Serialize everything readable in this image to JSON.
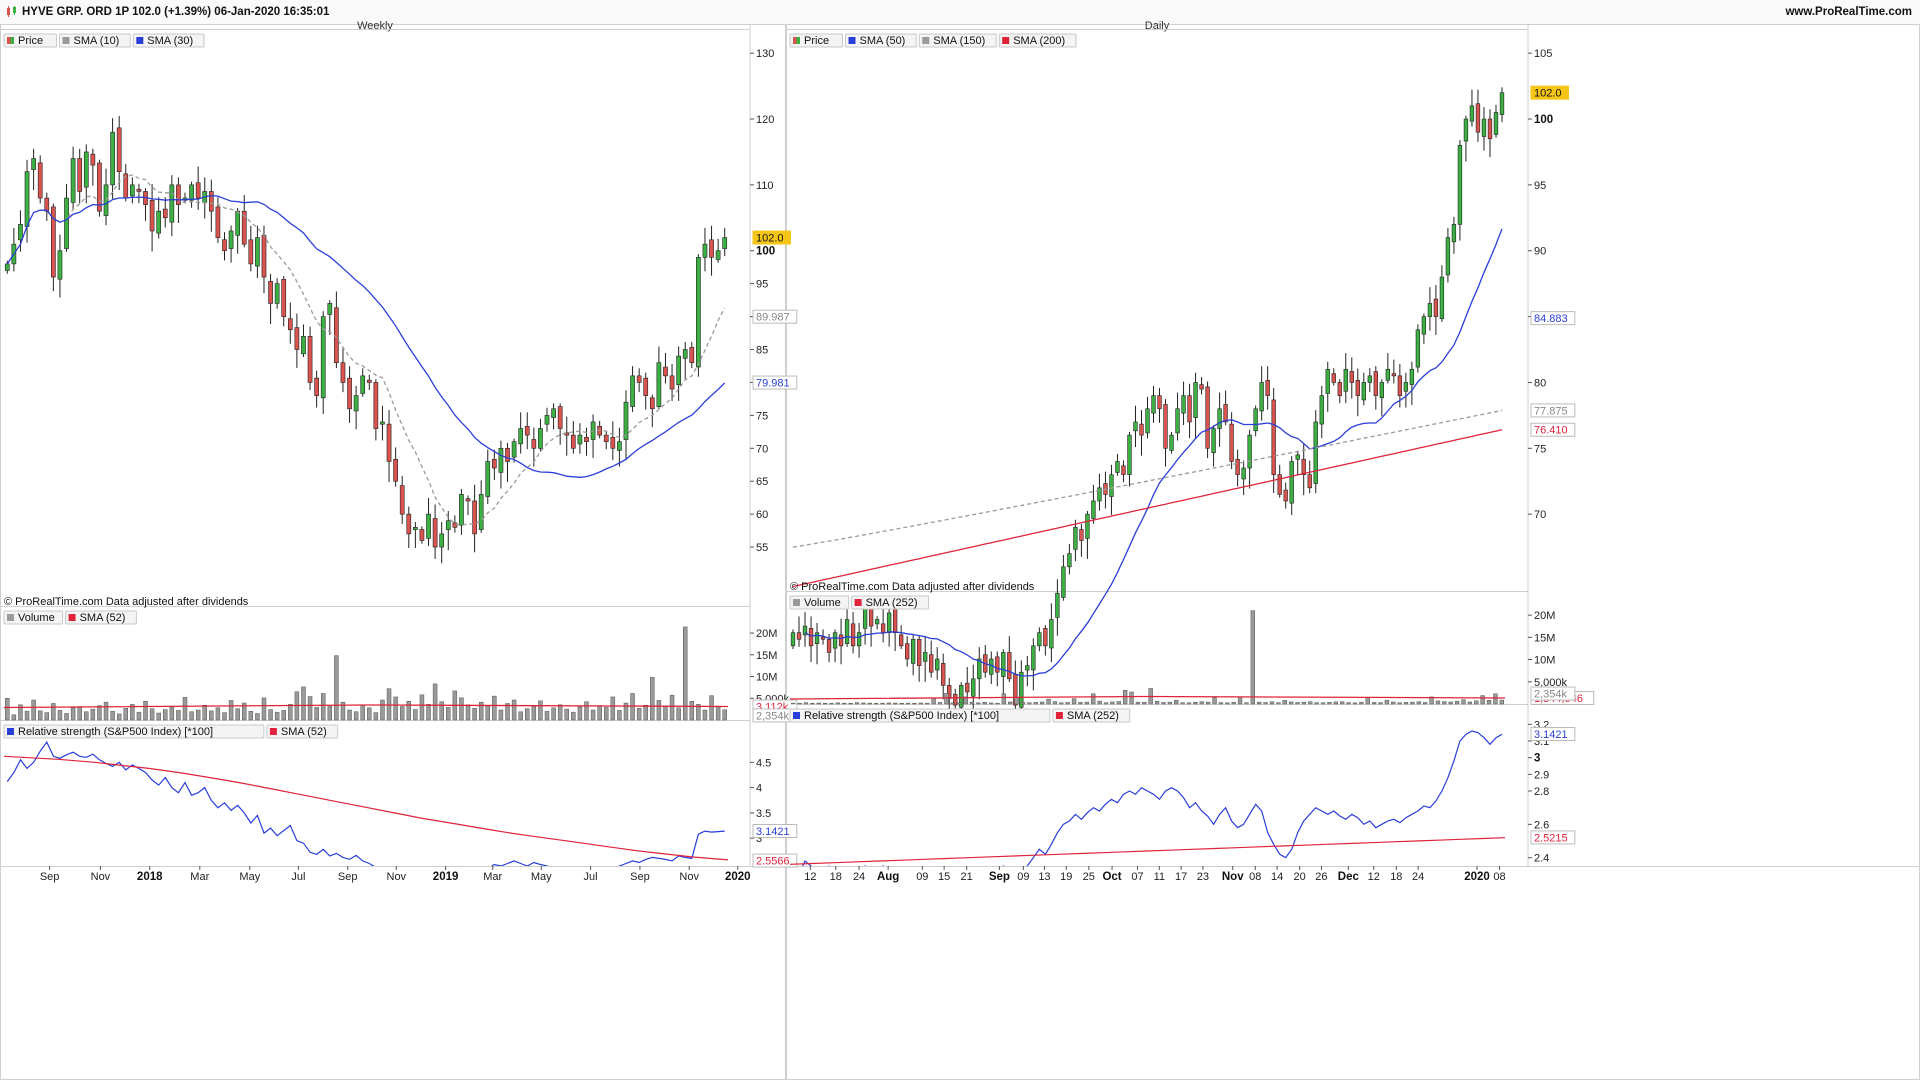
{
  "header": {
    "left_text": "HYVE GRP. ORD 1P 102.0 (+1.39%) 06-Jan-2020 16:35:01",
    "right_text": "www.ProRealTime.com"
  },
  "colors": {
    "up": "#3cb043",
    "down": "#d9534f",
    "sma_short": "#9a9a9a",
    "sma_blue": "#2a3ed8",
    "sma_red": "#e0233b",
    "rs_line": "#2a3ed8",
    "volume_bar": "#9a9a9a",
    "highlight": "#f5c518"
  },
  "chart_data": [
    {
      "id": "weekly-price",
      "type": "candlestick",
      "title": "Weekly",
      "legend": [
        "Price",
        "SMA (10)",
        "SMA (30)"
      ],
      "credit": "© ProRealTime.com  Data adjusted after dividends",
      "ylim": [
        50,
        132
      ],
      "y_ticks": [
        "130",
        "120",
        "110",
        "100",
        "95",
        "90",
        "85",
        "80",
        "75",
        "70",
        "65",
        "60",
        "55"
      ],
      "y_tick_values": [
        130,
        120,
        110,
        100,
        95,
        90,
        85,
        80,
        75,
        70,
        65,
        60,
        55
      ],
      "bold_tick": "100",
      "last_price_label": "102.0",
      "last_price": 102.0,
      "sma10_label": "89.987",
      "sma10_last": 89.987,
      "sma30_label": "79.981",
      "sma30_last": 79.981,
      "x_labels": [
        "Sep",
        "Nov",
        "2018",
        "Mar",
        "May",
        "Jul",
        "Sep",
        "Nov",
        "2019",
        "Mar",
        "May",
        "Jul",
        "Sep",
        "Nov",
        "2020"
      ],
      "bold_x_labels": [
        "2018",
        "2019",
        "2020"
      ],
      "x_label_positions": [
        0.062,
        0.131,
        0.198,
        0.266,
        0.334,
        0.4,
        0.467,
        0.533,
        0.6,
        0.664,
        0.73,
        0.797,
        0.864,
        0.931,
        0.997
      ],
      "close_series": [
        98,
        101,
        104,
        112,
        114,
        108,
        106,
        96,
        100,
        108,
        114,
        109,
        115,
        113,
        106,
        110,
        118,
        112,
        108,
        110,
        109,
        107,
        103,
        106,
        105,
        110,
        107,
        108,
        110,
        108,
        109,
        106,
        102,
        100,
        103,
        106,
        101,
        98,
        102,
        96,
        92,
        95,
        90,
        88,
        85,
        87,
        80,
        78,
        90,
        92,
        83,
        80,
        76,
        78,
        81,
        80,
        73,
        74,
        68,
        65,
        60,
        57,
        58,
        56,
        60,
        55,
        57,
        59,
        58,
        63,
        62,
        57,
        63,
        68,
        67,
        70,
        68,
        71,
        73,
        72,
        70,
        73,
        75,
        76,
        73,
        72,
        70,
        72,
        71,
        74,
        72,
        71,
        70,
        71,
        77,
        81,
        80,
        78,
        76,
        83,
        81,
        79,
        84,
        85,
        83,
        99,
        101,
        99,
        100,
        102
      ]
    },
    {
      "id": "weekly-volume",
      "type": "bar",
      "legend": [
        "Volume",
        "SMA (52)"
      ],
      "ylim": [
        0,
        23000000
      ],
      "y_ticks": [
        "20M",
        "15M",
        "10M",
        "5,000k"
      ],
      "y_tick_values": [
        20000000,
        15000000,
        10000000,
        5000000
      ],
      "sma_label": "3,112k",
      "sma_value": 3112000,
      "last_label": "2,354k",
      "last_value": 2354000,
      "values_k": [
        5000,
        1200,
        3500,
        2000,
        4600,
        2100,
        1700,
        3800,
        2200,
        1500,
        2800,
        3100,
        1900,
        2500,
        3300,
        4100,
        2000,
        1400,
        2700,
        3600,
        1800,
        4300,
        2600,
        1600,
        2400,
        3000,
        2200,
        5200,
        1900,
        2300,
        3400,
        2100,
        2800,
        1700,
        4500,
        2600,
        3900,
        2000,
        1500,
        5100,
        2400,
        1800,
        2200,
        3600,
        6500,
        7600,
        5400,
        2900,
        6100,
        3200,
        14800,
        4100,
        2300,
        1900,
        3400,
        2800,
        1700,
        4600,
        7200,
        5300,
        3100,
        4300,
        2400,
        5800,
        3600,
        8300,
        4200,
        2900,
        6700,
        5100,
        3500,
        2700,
        4100,
        3300,
        5500,
        2300,
        3800,
        4600,
        1900,
        2600,
        3200,
        4400,
        2000,
        2800,
        3500,
        2500,
        1800,
        3000,
        4200,
        2300,
        3300,
        2900,
        5300,
        2200,
        3900,
        6100,
        2700,
        3400,
        9800,
        4500,
        3100,
        5700,
        2800,
        21400,
        4300,
        3600,
        2300,
        5600,
        3200,
        2354
      ]
    },
    {
      "id": "weekly-rs",
      "type": "line",
      "legend": [
        "Relative strength (S&P500 Index) [*100]",
        "SMA (52)"
      ],
      "ylim": [
        2.45,
        5.1
      ],
      "y_ticks": [
        "4.5",
        "4",
        "3.5",
        "3"
      ],
      "y_tick_values": [
        4.5,
        4,
        3.5,
        3
      ],
      "rs_label": "3.1421",
      "rs_last": 3.1421,
      "sma_label": "2.5566",
      "sma_last": 2.5566,
      "rs_values": [
        4.12,
        4.3,
        4.55,
        4.38,
        4.5,
        4.72,
        4.9,
        4.62,
        4.58,
        4.65,
        4.7,
        4.62,
        4.6,
        4.66,
        4.55,
        4.48,
        4.42,
        4.5,
        4.35,
        4.45,
        4.38,
        4.3,
        4.15,
        4.05,
        4.2,
        4.0,
        3.9,
        4.1,
        3.85,
        3.9,
        4.0,
        3.75,
        3.6,
        3.7,
        3.55,
        3.65,
        3.5,
        3.3,
        3.45,
        3.1,
        3.2,
        3.05,
        3.15,
        3.25,
        2.95,
        2.9,
        2.72,
        2.68,
        2.78,
        2.65,
        2.7,
        2.62,
        2.58,
        2.66,
        2.55,
        2.5,
        2.42,
        2.35,
        2.4,
        2.3,
        2.25,
        2.3,
        2.18,
        2.22,
        2.25,
        2.2,
        2.3,
        2.28,
        2.25,
        2.35,
        2.3,
        2.28,
        2.32,
        2.4,
        2.48,
        2.45,
        2.5,
        2.55,
        2.5,
        2.45,
        2.52,
        2.48,
        2.45,
        2.38,
        2.4,
        2.35,
        2.38,
        2.32,
        2.3,
        2.35,
        2.38,
        2.42,
        2.4,
        2.45,
        2.5,
        2.55,
        2.52,
        2.58,
        2.62,
        2.6,
        2.58,
        2.55,
        2.65,
        2.62,
        2.6,
        3.08,
        3.14,
        3.12,
        3.13,
        3.14
      ],
      "sma_values": [
        4.62,
        4.6,
        4.58,
        4.56,
        4.53,
        4.5,
        4.46,
        4.42,
        4.38,
        4.33,
        4.28,
        4.22,
        4.16,
        4.1,
        4.03,
        3.96,
        3.89,
        3.82,
        3.75,
        3.68,
        3.61,
        3.54,
        3.47,
        3.4,
        3.34,
        3.28,
        3.22,
        3.16,
        3.1,
        3.05,
        3.0,
        2.95,
        2.9,
        2.85,
        2.8,
        2.75,
        2.71,
        2.67,
        2.63,
        2.6,
        2.57
      ]
    },
    {
      "id": "daily-price",
      "type": "candlestick",
      "title": "Daily",
      "legend": [
        "Price",
        "SMA (50)",
        "SMA (150)",
        "SMA (200)"
      ],
      "credit": "© ProRealTime.com  Data adjusted after dividends",
      "ylim": [
        65,
        106
      ],
      "y_ticks": [
        "105",
        "100",
        "95",
        "90",
        "85",
        "80",
        "75",
        "70"
      ],
      "y_tick_values": [
        105,
        100,
        95,
        90,
        85,
        80,
        75,
        70
      ],
      "bold_tick": "100",
      "last_price_label": "102.0",
      "last_price": 102.0,
      "sma50_label": "84.883",
      "sma50_last": 84.883,
      "sma150_label": "77.875",
      "sma150_last": 77.875,
      "sma200_label": "76.410",
      "sma200_last": 76.41,
      "x_labels": [
        "12",
        "18",
        "24",
        "Aug",
        "09",
        "15",
        "21",
        "Sep",
        "09",
        "13",
        "19",
        "25",
        "Oct",
        "07",
        "11",
        "17",
        "23",
        "Nov",
        "08",
        "14",
        "20",
        "26",
        "Dec",
        "12",
        "18",
        "24",
        "2020",
        "08"
      ],
      "bold_x_labels": [
        "Aug",
        "Sep",
        "Oct",
        "Nov",
        "Dec",
        "2020"
      ],
      "x_label_positions": [
        0.028,
        0.063,
        0.095,
        0.135,
        0.182,
        0.212,
        0.243,
        0.288,
        0.321,
        0.35,
        0.38,
        0.411,
        0.443,
        0.478,
        0.508,
        0.538,
        0.568,
        0.609,
        0.64,
        0.67,
        0.701,
        0.731,
        0.768,
        0.803,
        0.834,
        0.864,
        0.945,
        0.976
      ],
      "close_series": [
        61,
        60.5,
        61.5,
        60,
        61,
        60.5,
        59.5,
        61,
        60,
        62,
        60,
        61,
        63,
        61.5,
        62,
        61,
        62.5,
        61,
        60,
        59,
        60.5,
        58.5,
        59.5,
        58,
        59,
        57,
        56,
        55.5,
        57,
        56.5,
        57.5,
        59,
        58,
        59,
        58,
        59.5,
        57.5,
        55.5,
        58,
        58.5,
        60,
        61,
        60,
        62,
        64,
        66,
        67,
        69,
        68,
        70,
        71,
        72,
        71.5,
        73,
        74,
        73,
        76,
        77,
        76,
        78,
        79,
        78,
        75,
        76,
        78,
        79,
        77,
        80,
        79.5,
        75,
        76.5,
        78,
        77,
        74,
        73,
        73.5,
        76,
        78,
        80,
        79,
        73,
        71.5,
        71,
        74,
        74.5,
        73,
        72,
        77,
        79,
        81,
        80,
        79,
        81,
        80,
        79,
        80,
        80.5,
        79,
        80,
        81,
        80.5,
        79,
        80,
        81,
        84,
        85,
        86,
        85,
        88,
        91,
        92,
        98,
        100,
        101,
        99,
        100,
        98.5,
        100.5,
        102
      ]
    },
    {
      "id": "daily-volume",
      "type": "bar",
      "legend": [
        "Volume",
        "SMA (252)"
      ],
      "ylim": [
        0,
        22500000
      ],
      "y_ticks": [
        "20M",
        "15M",
        "10M",
        "5,000k"
      ],
      "y_tick_values": [
        20000000,
        15000000,
        10000000,
        5000000
      ],
      "sma_label": "2,354k",
      "sma_value": 2354000,
      "overlap_label": "1,344,946",
      "values_k": [
        200,
        150,
        300,
        180,
        220,
        160,
        140,
        260,
        190,
        170,
        310,
        230,
        200,
        150,
        180,
        240,
        210,
        170,
        190,
        160,
        220,
        180,
        1300,
        350,
        2400,
        250,
        300,
        1600,
        420,
        270,
        380,
        240,
        190,
        2300,
        460,
        1400,
        330,
        290,
        360,
        450,
        1100,
        520,
        280,
        340,
        1200,
        380,
        430,
        2300,
        650,
        300,
        470,
        560,
        3100,
        2700,
        410,
        380,
        3500,
        620,
        360,
        420,
        850,
        310,
        270,
        390,
        520,
        440,
        1400,
        320,
        260,
        380,
        1600,
        300,
        21000,
        420,
        340,
        510,
        290,
        830,
        470,
        350,
        420,
        530,
        310,
        280,
        390,
        460,
        520,
        330,
        250,
        410,
        1400,
        360,
        310,
        850,
        440,
        290,
        380,
        420,
        520,
        340,
        1600,
        700,
        540,
        450,
        630,
        980,
        460,
        720,
        1900,
        840,
        2300,
        880
      ]
    },
    {
      "id": "daily-rs",
      "type": "line",
      "legend": [
        "Relative strength (S&P500 Index) [*100]",
        "SMA (252)"
      ],
      "ylim": [
        2.35,
        3.25
      ],
      "y_ticks": [
        "3.2",
        "3.1",
        "3",
        "2.9",
        "2.8",
        "2.6",
        "2.4"
      ],
      "y_tick_values": [
        3.2,
        3.1,
        3,
        2.9,
        2.8,
        2.6,
        2.4
      ],
      "bold_tick": "3",
      "rs_label": "3.1421",
      "rs_last": 3.1421,
      "sma_label": "2.5215",
      "sma_last": 2.5215,
      "rs_values": [
        2.33,
        2.3,
        2.38,
        2.35,
        2.32,
        2.28,
        2.35,
        2.3,
        2.25,
        2.32,
        2.3,
        2.27,
        2.35,
        2.3,
        2.28,
        2.35,
        2.32,
        2.3,
        2.27,
        2.33,
        2.3,
        2.25,
        2.32,
        2.28,
        2.24,
        2.3,
        2.27,
        2.24,
        2.3,
        2.26,
        2.3,
        2.34,
        2.3,
        2.32,
        2.3,
        2.35,
        2.3,
        2.26,
        2.32,
        2.35,
        2.4,
        2.45,
        2.42,
        2.48,
        2.55,
        2.6,
        2.62,
        2.66,
        2.63,
        2.67,
        2.7,
        2.68,
        2.72,
        2.75,
        2.73,
        2.78,
        2.8,
        2.78,
        2.82,
        2.8,
        2.78,
        2.75,
        2.8,
        2.82,
        2.8,
        2.76,
        2.7,
        2.73,
        2.68,
        2.65,
        2.6,
        2.66,
        2.7,
        2.62,
        2.58,
        2.6,
        2.66,
        2.72,
        2.68,
        2.55,
        2.48,
        2.42,
        2.4,
        2.45,
        2.55,
        2.62,
        2.66,
        2.7,
        2.68,
        2.66,
        2.68,
        2.65,
        2.63,
        2.66,
        2.64,
        2.6,
        2.62,
        2.58,
        2.6,
        2.62,
        2.63,
        2.61,
        2.64,
        2.66,
        2.68,
        2.71,
        2.7,
        2.74,
        2.8,
        2.88,
        2.98,
        3.1,
        3.14,
        3.16,
        3.15,
        3.12,
        3.08,
        3.12,
        3.14
      ],
      "sma_values": [
        2.36,
        2.365,
        2.37,
        2.375,
        2.38,
        2.385,
        2.39,
        2.395,
        2.4,
        2.405,
        2.41,
        2.415,
        2.42,
        2.425,
        2.43,
        2.435,
        2.44,
        2.445,
        2.45,
        2.455,
        2.46,
        2.465,
        2.47,
        2.475,
        2.48,
        2.485,
        2.49,
        2.495,
        2.5,
        2.505,
        2.51,
        2.515,
        2.52
      ]
    }
  ]
}
